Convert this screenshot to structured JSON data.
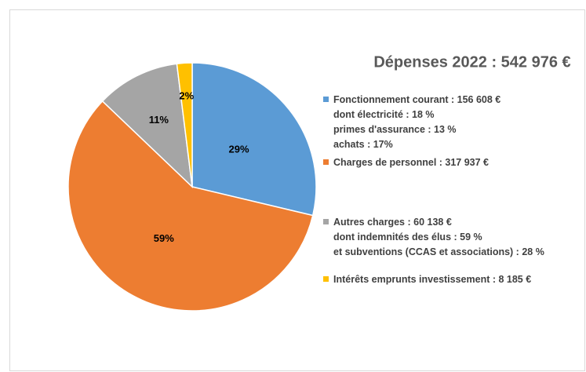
{
  "chart_data": {
    "type": "pie",
    "title": "Dépenses 2022 : 542 976 €",
    "categories": [
      "Fonctionnement courant : 156 608 €",
      "Charges de personnel : 317 937 €",
      "Autres charges : 60 138 €",
      "Intérêts emprunts investissement : 8 185 €"
    ],
    "values": [
      29,
      59,
      11,
      2
    ],
    "value_labels": [
      "29%",
      "59%",
      "11%",
      "2%"
    ],
    "colors": [
      "#5b9bd5",
      "#ed7d31",
      "#a5a5a5",
      "#ffc000"
    ],
    "details": [
      [
        "dont électricité : 18 %",
        "primes d'assurance : 13 %",
        "achats : 17%"
      ],
      [],
      [
        "dont indemnités des élus : 59 %",
        "et subventions (CCAS et associations) : 28 %"
      ],
      []
    ]
  }
}
